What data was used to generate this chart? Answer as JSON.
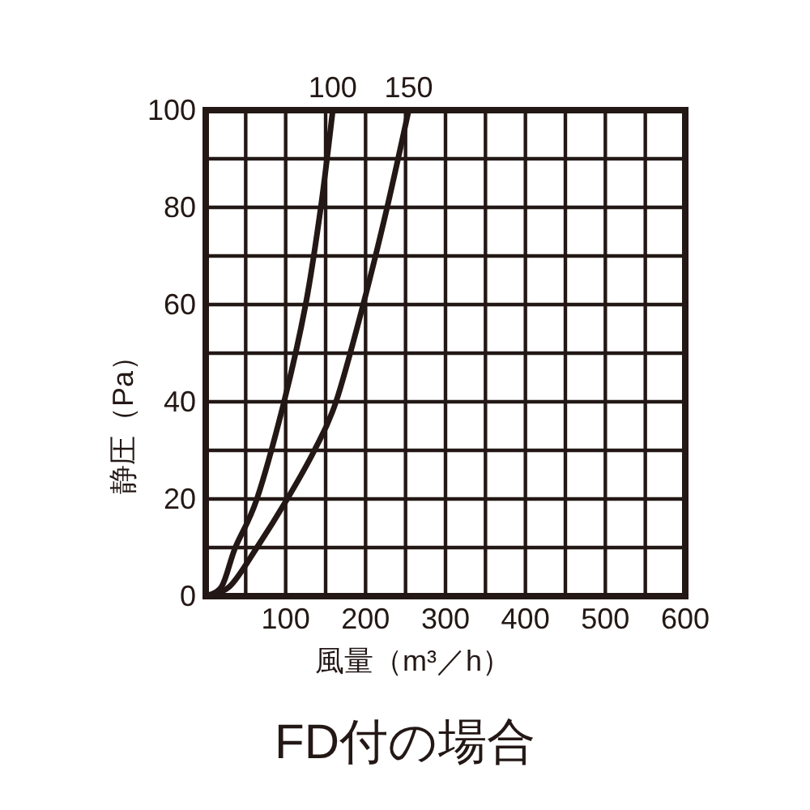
{
  "chart_data": {
    "type": "line",
    "title": "FD付の場合",
    "xlabel": "風量（m³／h）",
    "ylabel": "静圧（Pa）",
    "xlim": [
      0,
      600
    ],
    "ylim": [
      0,
      100
    ],
    "xticks": [
      {
        "value": 0,
        "label": null
      },
      {
        "value": 50,
        "label": null
      },
      100,
      {
        "value": 150,
        "label": null
      },
      200,
      {
        "value": 250,
        "label": null
      },
      300,
      {
        "value": 350,
        "label": null
      },
      400,
      {
        "value": 450,
        "label": null
      },
      500,
      {
        "value": 550,
        "label": null
      },
      600
    ],
    "yticks": [
      0,
      {
        "value": 10,
        "label": null
      },
      20,
      {
        "value": 30,
        "label": null
      },
      40,
      {
        "value": 50,
        "label": null
      },
      60,
      {
        "value": 70,
        "label": null
      },
      80,
      {
        "value": 90,
        "label": null
      },
      100
    ],
    "grid": true,
    "line_style": "solid",
    "series": [
      {
        "name": "100",
        "color": "#231815",
        "x": [
          0,
          20,
          37,
          64,
          98,
          125,
          144,
          159
        ],
        "values": [
          0,
          2,
          10,
          20,
          40,
          60,
          80,
          100
        ]
      },
      {
        "name": "150",
        "color": "#231815",
        "x": [
          0,
          30,
          64,
          102,
          136,
          163,
          197,
          227,
          254
        ],
        "values": [
          0,
          2,
          10,
          20,
          30,
          40,
          60,
          80,
          100
        ]
      }
    ]
  }
}
